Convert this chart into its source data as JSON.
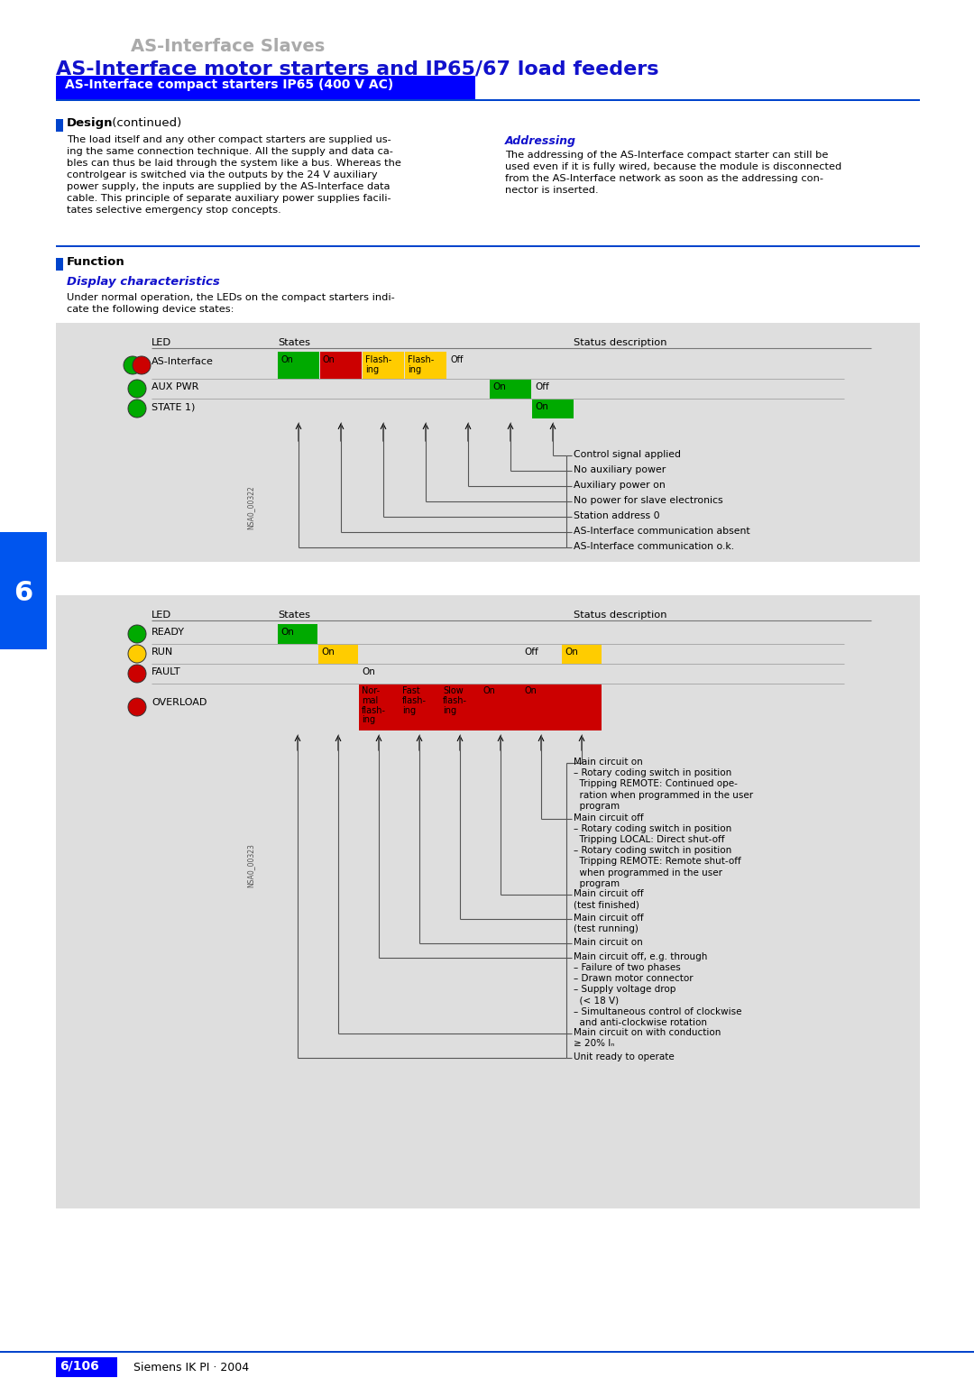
{
  "title_gray": "AS-Interface Slaves",
  "title_blue": "AS-Interface motor starters and IP65/67 load feeders",
  "section_bar_text": "AS-Interface compact starters IP65 (400 V AC)",
  "design_bold": "Design",
  "design_cont": " (continued)",
  "design_text": "The load itself and any other compact starters are supplied us-\ning the same connection technique. All the supply and data ca-\nbles can thus be laid through the system like a bus. Whereas the\ncontrolgear is switched via the outputs by the 24 V auxiliary\npower supply, the inputs are supplied by the AS-Interface data\ncable. This principle of separate auxiliary power supplies facili-\ntates selective emergency stop concepts.",
  "addressing_title": "Addressing",
  "addressing_text": "The addressing of the AS-Interface compact starter can still be\nused even if it is fully wired, because the module is disconnected\nfrom the AS-Interface network as soon as the addressing con-\nnector is inserted.",
  "function_bold": "Function",
  "display_char_title": "Display characteristics",
  "display_char_text": "Under normal operation, the LEDs on the compact starters indi-\ncate the following device states:",
  "table1_status_items": [
    "Control signal applied",
    "No auxiliary power",
    "Auxiliary power on",
    "No power for slave electronics",
    "Station address 0",
    "AS-Interface communication absent",
    "AS-Interface communication o.k."
  ],
  "table2_status_items": [
    "Main circuit on\n– Rotary coding switch in position\n  Tripping REMOTE: Continued ope-\n  ration when programmed in the user\n  program",
    "Main circuit off\n– Rotary coding switch in position\n  Tripping LOCAL: Direct shut-off\n– Rotary coding switch in position\n  Tripping REMOTE: Remote shut-off\n  when programmed in the user\n  program",
    "Main circuit off\n(test finished)",
    "Main circuit off\n(test running)",
    "Main circuit on",
    "Main circuit off, e.g. through\n– Failure of two phases\n– Drawn motor connector\n– Supply voltage drop\n  (< 18 V)\n– Simultaneous control of clockwise\n  and anti-clockwise rotation",
    "Main circuit on with conduction\n≥ 20% Iₙ",
    "Unit ready to operate"
  ],
  "page_number": "6/106",
  "page_footer": "Siemens IK PI · 2004"
}
